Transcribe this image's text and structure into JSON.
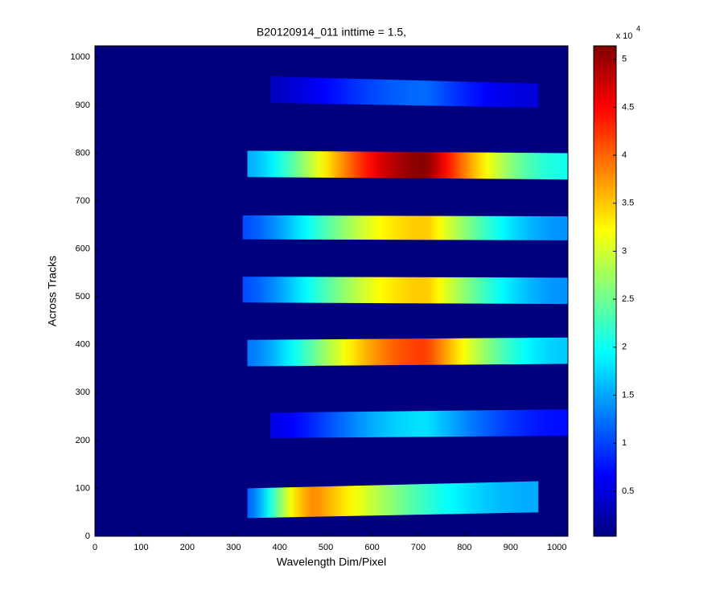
{
  "chart_data": {
    "type": "image",
    "title": "B20120914_011 inttime = 1.5,",
    "x_label": "Wavelength Dim/Pixel",
    "y_label": "Across Tracks",
    "xlim": [
      0,
      1024
    ],
    "xticks": [
      0,
      100,
      200,
      300,
      400,
      500,
      600,
      700,
      800,
      900,
      1000
    ],
    "ylim": [
      0,
      1024
    ],
    "yticks": [
      0,
      100,
      200,
      300,
      400,
      500,
      600,
      700,
      800,
      900,
      1000
    ],
    "background": 0.02,
    "stripes": [
      {
        "x": [
          380,
          960
        ],
        "y_left": [
          905,
          960
        ],
        "y_right": [
          895,
          945
        ],
        "peak": 1.2,
        "peak_x": 720
      },
      {
        "x": [
          330,
          1024
        ],
        "y_left": [
          750,
          805
        ],
        "y_right": [
          745,
          800
        ],
        "peak": 5.1,
        "peak_x": 720
      },
      {
        "x": [
          320,
          1024
        ],
        "y_left": [
          620,
          670
        ],
        "y_right": [
          618,
          668
        ],
        "peak": 3.5,
        "peak_x": 720
      },
      {
        "x": [
          320,
          1024
        ],
        "y_left": [
          488,
          542
        ],
        "y_right": [
          485,
          540
        ],
        "peak": 3.5,
        "peak_x": 720
      },
      {
        "x": [
          330,
          1024
        ],
        "y_left": [
          355,
          410
        ],
        "y_right": [
          360,
          415
        ],
        "peak": 4.2,
        "peak_x": 720
      },
      {
        "x": [
          380,
          1024
        ],
        "y_left": [
          205,
          258
        ],
        "y_right": [
          210,
          265
        ],
        "peak": 1.8,
        "peak_x": 720
      },
      {
        "x": [
          330,
          960
        ],
        "y_left": [
          38,
          100
        ],
        "y_right": [
          50,
          115
        ],
        "peak": 3.8,
        "peak_x": 480
      }
    ],
    "colorbar": {
      "clim": [
        0.03,
        5.14
      ],
      "ticks": [
        0.5,
        1,
        1.5,
        2,
        2.5,
        3,
        3.5,
        4,
        4.5,
        5
      ],
      "multiplier": "x 10",
      "exponent": "4"
    },
    "colormap": "jet"
  }
}
